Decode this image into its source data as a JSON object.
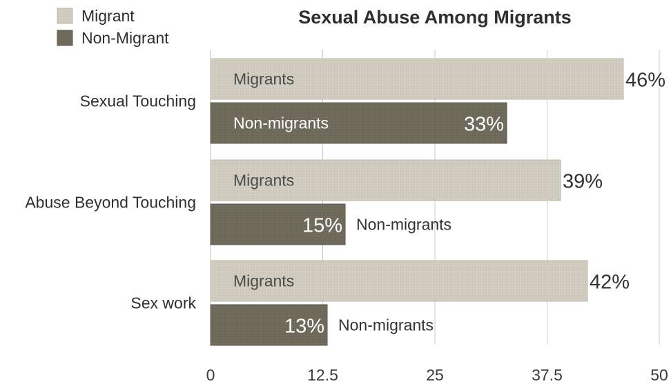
{
  "chart_data": {
    "type": "bar",
    "orientation": "horizontal",
    "title": "Sexual Abuse Among Migrants",
    "categories": [
      "Sexual Touching",
      "Abuse Beyond Touching",
      "Sex work"
    ],
    "series": [
      {
        "name": "Migrant",
        "color": "#cfcbbf",
        "values": [
          46,
          39,
          42
        ],
        "value_labels": [
          "46%",
          "39%",
          "42%"
        ],
        "bar_labels": [
          "Migrants",
          "Migrants",
          "Migrants"
        ]
      },
      {
        "name": "Non-Migrant",
        "color": "#6e6a5c",
        "values": [
          33,
          15,
          13
        ],
        "value_labels": [
          "33%",
          "15%",
          "13%"
        ],
        "bar_labels": [
          "Non-migrants",
          "Non-migrants",
          "Non-migrants"
        ]
      }
    ],
    "xlim": [
      0,
      50
    ],
    "x_ticks": [
      0,
      12.5,
      25,
      37.5,
      50
    ],
    "x_tick_labels": [
      "0",
      "12.5",
      "25",
      "37.5",
      "50"
    ],
    "xlabel": "",
    "ylabel": "",
    "grid": true,
    "legend_position": "top-left"
  }
}
